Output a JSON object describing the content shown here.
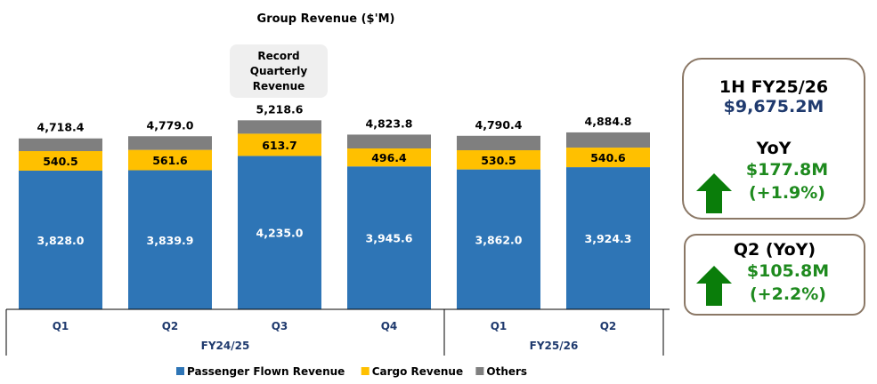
{
  "chart_data": {
    "type": "bar",
    "stacked": true,
    "title": "Group Revenue ($'M)",
    "categories": [
      "Q1",
      "Q2",
      "Q3",
      "Q4",
      "Q1",
      "Q2"
    ],
    "groups": [
      {
        "label": "FY24/25",
        "count": 4
      },
      {
        "label": "FY25/26",
        "count": 2
      }
    ],
    "series": [
      {
        "name": "Passenger Flown Revenue",
        "color": "#2e75b6",
        "values": [
          3828.0,
          3839.9,
          4235.0,
          3945.6,
          3862.0,
          3924.3
        ],
        "labels": [
          "3,828.0",
          "3,839.9",
          "4,235.0",
          "3,945.6",
          "3,862.0",
          "3,924.3"
        ]
      },
      {
        "name": "Cargo Revenue",
        "color": "#ffc000",
        "values": [
          540.5,
          561.6,
          613.7,
          496.4,
          530.5,
          540.6
        ],
        "labels": [
          "540.5",
          "561.6",
          "613.7",
          "496.4",
          "530.5",
          "540.6"
        ]
      },
      {
        "name": "Others",
        "color": "#7f7f7f",
        "values": [
          349.9,
          377.5,
          369.9,
          381.8,
          397.9,
          419.9
        ]
      }
    ],
    "totals": [
      4718.4,
      4779.0,
      5218.6,
      4823.8,
      4790.4,
      4884.8
    ],
    "total_labels": [
      "4,718.4",
      "4,779.0",
      "5,218.6",
      "4,823.8",
      "4,790.4",
      "4,884.8"
    ],
    "annotation": "Record Quarterly Revenue",
    "legend": "bottom",
    "ylim": [
      0,
      5800
    ],
    "grid": false
  },
  "summary": {
    "half_title": "1H FY25/26",
    "half_value": "$9,675.2M",
    "yoy_title": "YoY",
    "yoy_value": "$177.8M",
    "yoy_pct": "(+1.9%)",
    "q2_title": "Q2 (YoY)",
    "q2_value": "$105.8M",
    "q2_pct": "(+2.2%)",
    "up_color": "#0a7d0a"
  }
}
